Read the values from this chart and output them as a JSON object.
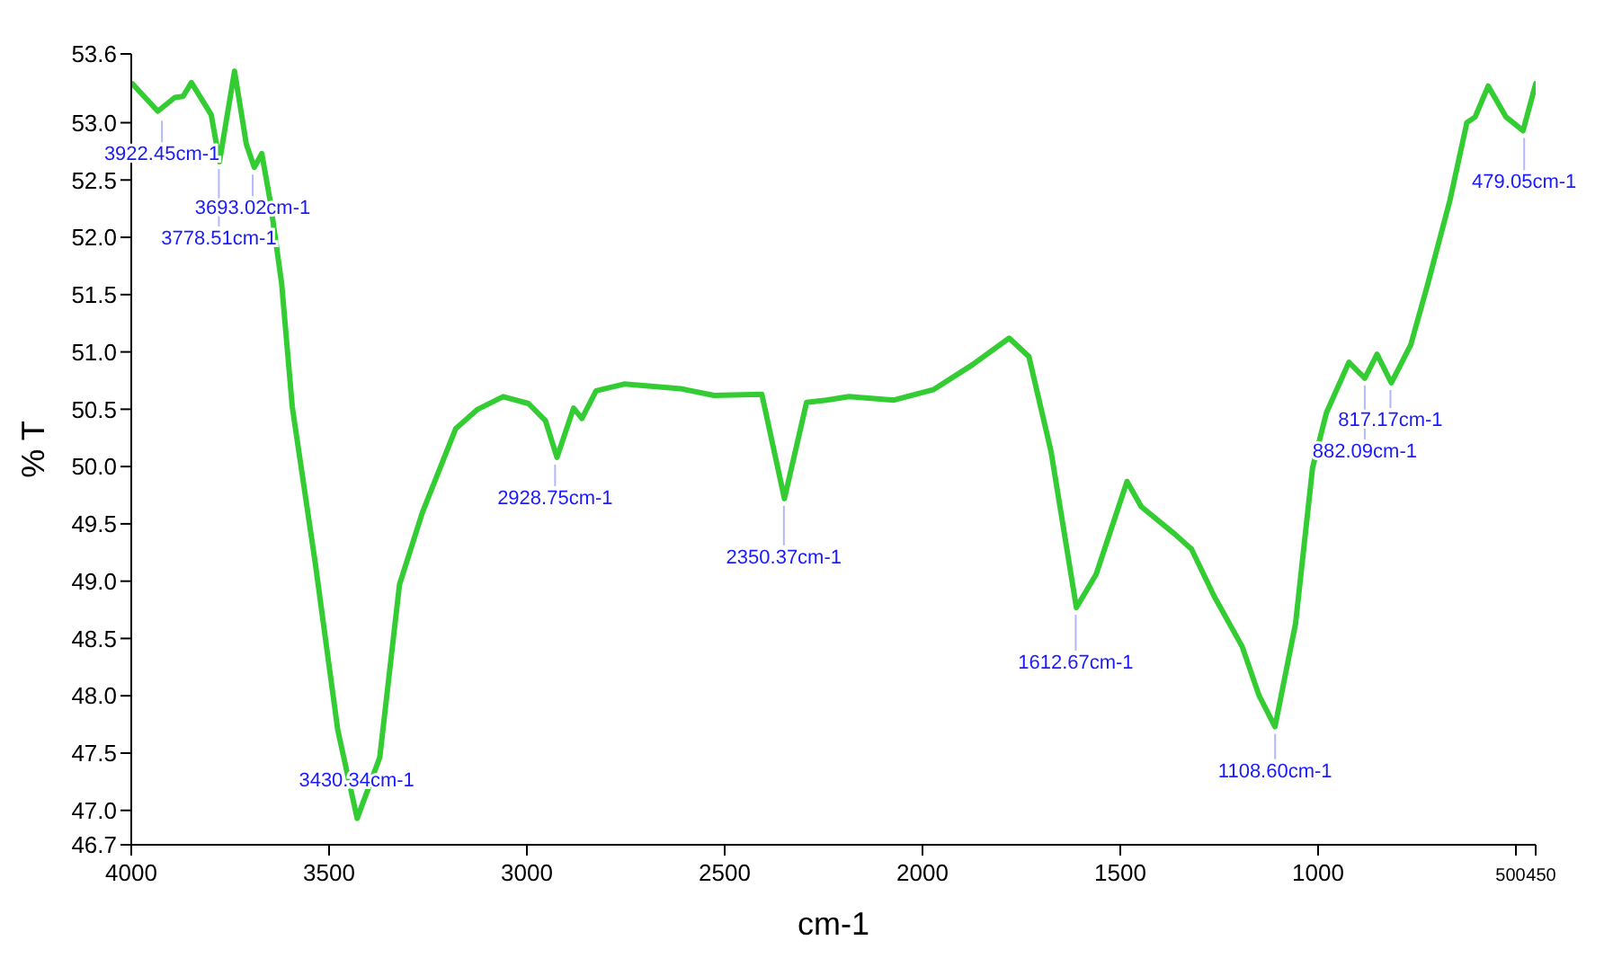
{
  "chart_data": {
    "type": "line",
    "xlabel": "cm-1",
    "ylabel": "% T",
    "x": [
      3997,
      3933,
      3890,
      3869,
      3848,
      3798,
      3777,
      3739,
      3709,
      3689,
      3670,
      3649,
      3620,
      3593,
      3535,
      3478,
      3429,
      3372,
      3322,
      3264,
      3180,
      3124,
      3060,
      2996,
      2953,
      2924,
      2882,
      2861,
      2825,
      2754,
      2612,
      2527,
      2406,
      2349,
      2293,
      2243,
      2186,
      2072,
      1973,
      1873,
      1781,
      1731,
      1675,
      1611,
      1561,
      1483,
      1447,
      1362,
      1320,
      1263,
      1192,
      1149,
      1109,
      1057,
      1014,
      979,
      922,
      882,
      851,
      815,
      766,
      723,
      667,
      624,
      603,
      570,
      525,
      482,
      450
    ],
    "series": [
      {
        "color": "#33cc33",
        "values": [
          53.34,
          53.1,
          53.22,
          53.23,
          53.35,
          53.07,
          52.66,
          53.45,
          52.81,
          52.61,
          52.73,
          52.32,
          51.6,
          50.52,
          49.16,
          47.7,
          46.93,
          47.46,
          48.97,
          49.6,
          50.33,
          50.5,
          50.61,
          50.55,
          50.4,
          50.08,
          50.51,
          50.42,
          50.66,
          50.72,
          50.68,
          50.62,
          50.63,
          49.72,
          50.56,
          50.58,
          50.61,
          50.58,
          50.67,
          50.89,
          51.12,
          50.96,
          50.13,
          48.77,
          49.06,
          49.87,
          49.65,
          49.41,
          49.28,
          48.87,
          48.43,
          48.0,
          47.73,
          48.63,
          49.99,
          50.47,
          50.91,
          50.77,
          50.98,
          50.73,
          51.06,
          51.59,
          52.32,
          53.0,
          53.05,
          53.32,
          53.05,
          52.93,
          53.34
        ]
      }
    ],
    "xlim": [
      4000,
      450
    ],
    "xticks": [
      4000,
      3500,
      3000,
      2500,
      2000,
      1500,
      1000,
      500,
      450
    ],
    "ylim": [
      46.7,
      53.6
    ],
    "yticks": [
      {
        "value": 46.7,
        "label": "46.7"
      },
      {
        "value": 47,
        "label": "47.0"
      },
      47.5,
      {
        "value": 48,
        "label": "48.0"
      },
      48.5,
      {
        "value": 49,
        "label": "49.0"
      },
      49.5,
      {
        "value": 50,
        "label": "50.0"
      },
      50.5,
      {
        "value": 51,
        "label": "51.0"
      },
      51.5,
      {
        "value": 52,
        "label": "52.0"
      },
      52.5,
      {
        "value": 53,
        "label": "53.0"
      },
      53.6
    ],
    "grid": false,
    "legend": false,
    "marker": "none",
    "line_style": "solid",
    "annotations": [
      {
        "text": "3922.45cm-1",
        "x": 3922.45,
        "y": 53.08
      },
      {
        "text": "3778.51cm-1",
        "x": 3778.51,
        "y": 52.66
      },
      {
        "text": "3693.02cm-1",
        "x": 3693.02,
        "y": 52.61
      },
      {
        "text": "3430.34cm-1",
        "x": 3430.34,
        "y": 46.93
      },
      {
        "text": "2928.75cm-1",
        "x": 2928.75,
        "y": 50.08
      },
      {
        "text": "2350.37cm-1",
        "x": 2350.37,
        "y": 49.72
      },
      {
        "text": "1612.67cm-1",
        "x": 1612.67,
        "y": 48.77
      },
      {
        "text": "1108.60cm-1",
        "x": 1108.6,
        "y": 47.73
      },
      {
        "text": "882.09cm-1",
        "x": 882.09,
        "y": 50.77
      },
      {
        "text": "817.17cm-1",
        "x": 817.17,
        "y": 50.73
      },
      {
        "text": "479.05cm-1",
        "x": 479.05,
        "y": 52.93
      }
    ]
  }
}
